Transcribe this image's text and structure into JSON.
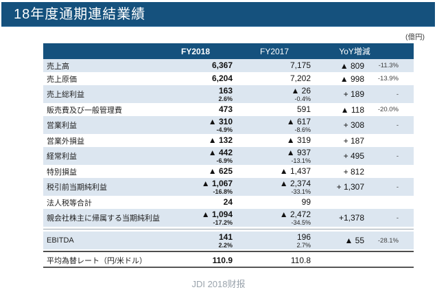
{
  "header": {
    "title": "18年度通期連結業績"
  },
  "page": {
    "unit_label": "(億円)",
    "caption": "JDI 2018财报"
  },
  "table": {
    "columns": {
      "fy2018": "FY2018",
      "fy2017": "FY2017",
      "yoy": "YoY増減"
    },
    "rows": [
      {
        "type": "row",
        "shaded": true,
        "label": "売上高",
        "fy2018": "6,367",
        "fy2018_pct": "",
        "fy2017": "7,175",
        "fy2017_pct": "",
        "yoy": "▲ 809",
        "chg": "-11.3%"
      },
      {
        "type": "row",
        "shaded": false,
        "label": "売上原価",
        "fy2018": "6,204",
        "fy2018_pct": "",
        "fy2017": "7,202",
        "fy2017_pct": "",
        "yoy": "▲ 998",
        "chg": "-13.9%"
      },
      {
        "type": "row",
        "shaded": true,
        "label": "売上総利益",
        "fy2018": "163",
        "fy2018_pct": "2.6%",
        "fy2017": "▲ 26",
        "fy2017_pct": "-0.4%",
        "yoy": "+ 189",
        "chg": "-"
      },
      {
        "type": "row",
        "shaded": false,
        "label": "販売費及び一般管理費",
        "fy2018": "473",
        "fy2018_pct": "",
        "fy2017": "591",
        "fy2017_pct": "",
        "yoy": "▲ 118",
        "chg": "-20.0%"
      },
      {
        "type": "row",
        "shaded": true,
        "label": "営業利益",
        "fy2018": "▲ 310",
        "fy2018_pct": "-4.9%",
        "fy2017": "▲ 617",
        "fy2017_pct": "-8.6%",
        "yoy": "+ 308",
        "chg": "-"
      },
      {
        "type": "row",
        "shaded": false,
        "label": "営業外損益",
        "fy2018": "▲ 132",
        "fy2018_pct": "",
        "fy2017": "▲ 319",
        "fy2017_pct": "",
        "yoy": "+ 187",
        "chg": ""
      },
      {
        "type": "row",
        "shaded": true,
        "label": "経常利益",
        "fy2018": "▲ 442",
        "fy2018_pct": "-6.9%",
        "fy2017": "▲ 937",
        "fy2017_pct": "-13.1%",
        "yoy": "+ 495",
        "chg": "-"
      },
      {
        "type": "row",
        "shaded": false,
        "label": "特別損益",
        "fy2018": "▲ 625",
        "fy2018_pct": "",
        "fy2017": "▲ 1,437",
        "fy2017_pct": "",
        "yoy": "+ 812",
        "chg": ""
      },
      {
        "type": "row",
        "shaded": true,
        "label": "税引前当期純利益",
        "fy2018": "▲ 1,067",
        "fy2018_pct": "-16.8%",
        "fy2017": "▲ 2,374",
        "fy2017_pct": "-33.1%",
        "yoy": "+ 1,307",
        "chg": "-"
      },
      {
        "type": "row",
        "shaded": false,
        "label": "法人税等合計",
        "fy2018": "24",
        "fy2018_pct": "",
        "fy2017": "99",
        "fy2017_pct": "",
        "yoy": "",
        "chg": ""
      },
      {
        "type": "row",
        "shaded": true,
        "label": "親会社株主に帰属する当期純利益",
        "fy2018": "▲ 1,094",
        "fy2018_pct": "-17.2%",
        "fy2017": "▲ 2,472",
        "fy2017_pct": "-34.5%",
        "yoy": "+1,378",
        "chg": "-"
      },
      {
        "type": "separator",
        "style": "gray"
      },
      {
        "type": "row",
        "shaded": true,
        "label": "EBITDA",
        "fy2018": "141",
        "fy2018_pct": "2.2%",
        "fy2017": "196",
        "fy2017_pct": "2.7%",
        "yoy": "▲ 55",
        "chg": "-28.1%"
      },
      {
        "type": "separator",
        "style": "dark"
      },
      {
        "type": "row",
        "shaded": false,
        "label": "平均為替レート（円/米ドル）",
        "fy2018": "110.9",
        "fy2018_pct": "",
        "fy2017": "110.8",
        "fy2017_pct": "",
        "yoy": "",
        "chg": ""
      }
    ]
  },
  "colors": {
    "title_bar": "#15517d",
    "header_bg": "#15517d",
    "shaded_row": "#dce6f0",
    "caption_text": "#9aa3ac"
  }
}
